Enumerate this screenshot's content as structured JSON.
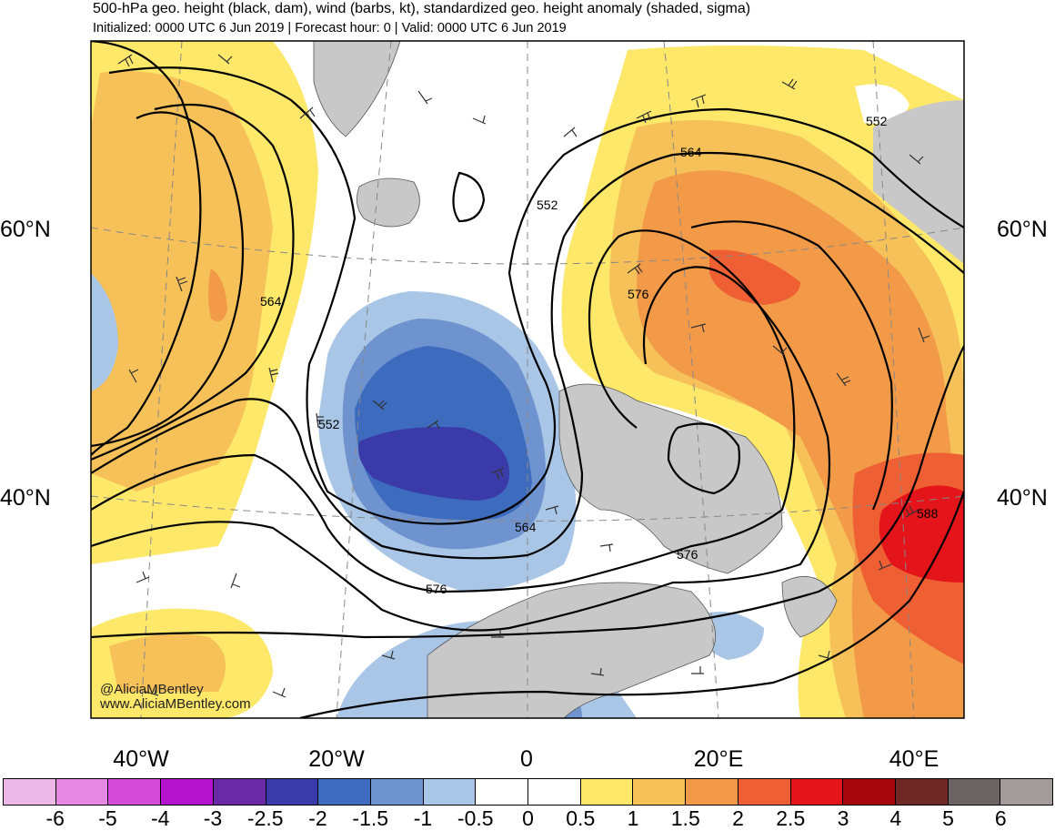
{
  "header": {
    "title": "500-hPa geo. height (black, dam), wind (barbs, kt), standardized geo. height anomaly (shaded, sigma)",
    "subtitle": "Initialized: 0000 UTC 6 Jun 2019 | Forecast hour: 0 | Valid: 0000 UTC 6 Jun 2019"
  },
  "map": {
    "lat_labels": [
      "60°N",
      "40°N"
    ],
    "lon_labels": [
      "40°W",
      "20°W",
      "0",
      "20°E",
      "40°E"
    ],
    "contour_labels": [
      "552",
      "552",
      "552",
      "564",
      "564",
      "564",
      "576",
      "576",
      "576",
      "588"
    ]
  },
  "credit": {
    "handle": "@AliciaMBentley",
    "website": "www.AliciaMBentley.com"
  },
  "colorbar": {
    "colors": [
      "#ecb8e8",
      "#e488e4",
      "#d64ad9",
      "#b313cc",
      "#6a2aa8",
      "#3a3aa8",
      "#3d6cbf",
      "#6f93cf",
      "#a9c6e6",
      "#ffffff",
      "#ffffff",
      "#fde86a",
      "#f5c158",
      "#f39a48",
      "#ef5f34",
      "#e3141a",
      "#a7060c",
      "#6e2924",
      "#6b6462",
      "#a49c9a"
    ],
    "tick_labels": [
      "-6",
      "-5",
      "-4",
      "-3",
      "-2.5",
      "-2",
      "-1.5",
      "-1",
      "-0.5",
      "0",
      "0.5",
      "1",
      "1.5",
      "2",
      "2.5",
      "3",
      "4",
      "5",
      "6"
    ]
  }
}
